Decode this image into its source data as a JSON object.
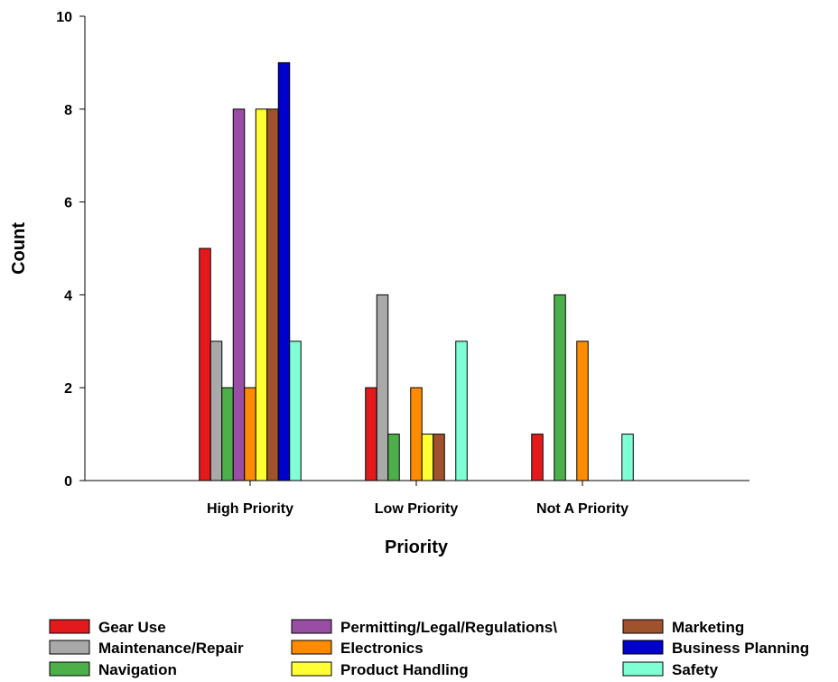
{
  "chart_data": {
    "type": "bar",
    "xlabel": "Priority",
    "ylabel": "Count",
    "ylim": [
      0,
      10
    ],
    "yticks": [
      0,
      2,
      4,
      6,
      8,
      10
    ],
    "grid": false,
    "legend_position": "bottom",
    "categories": [
      "High Priority",
      "Low Priority",
      "Not A Priority"
    ],
    "series": [
      {
        "name": "Gear Use",
        "color": "#e31a1c",
        "values": [
          5,
          2,
          1
        ]
      },
      {
        "name": "Maintenance/Repair",
        "color": "#a9a9a9",
        "values": [
          3,
          4,
          0
        ]
      },
      {
        "name": "Navigation",
        "color": "#4daf4a",
        "values": [
          2,
          1,
          4
        ]
      },
      {
        "name": "Permitting/Legal/Regulations\\",
        "color": "#984ea3",
        "values": [
          8,
          0,
          0
        ]
      },
      {
        "name": "Electronics",
        "color": "#ff8c00",
        "values": [
          2,
          2,
          3
        ]
      },
      {
        "name": "Product Handling",
        "color": "#ffff33",
        "values": [
          8,
          1,
          0
        ]
      },
      {
        "name": "Marketing",
        "color": "#a0522d",
        "values": [
          8,
          1,
          0
        ]
      },
      {
        "name": "Business Planning",
        "color": "#0000cd",
        "values": [
          9,
          0,
          0
        ]
      },
      {
        "name": "Safety",
        "color": "#7fffd4",
        "values": [
          3,
          3,
          1
        ]
      }
    ]
  }
}
